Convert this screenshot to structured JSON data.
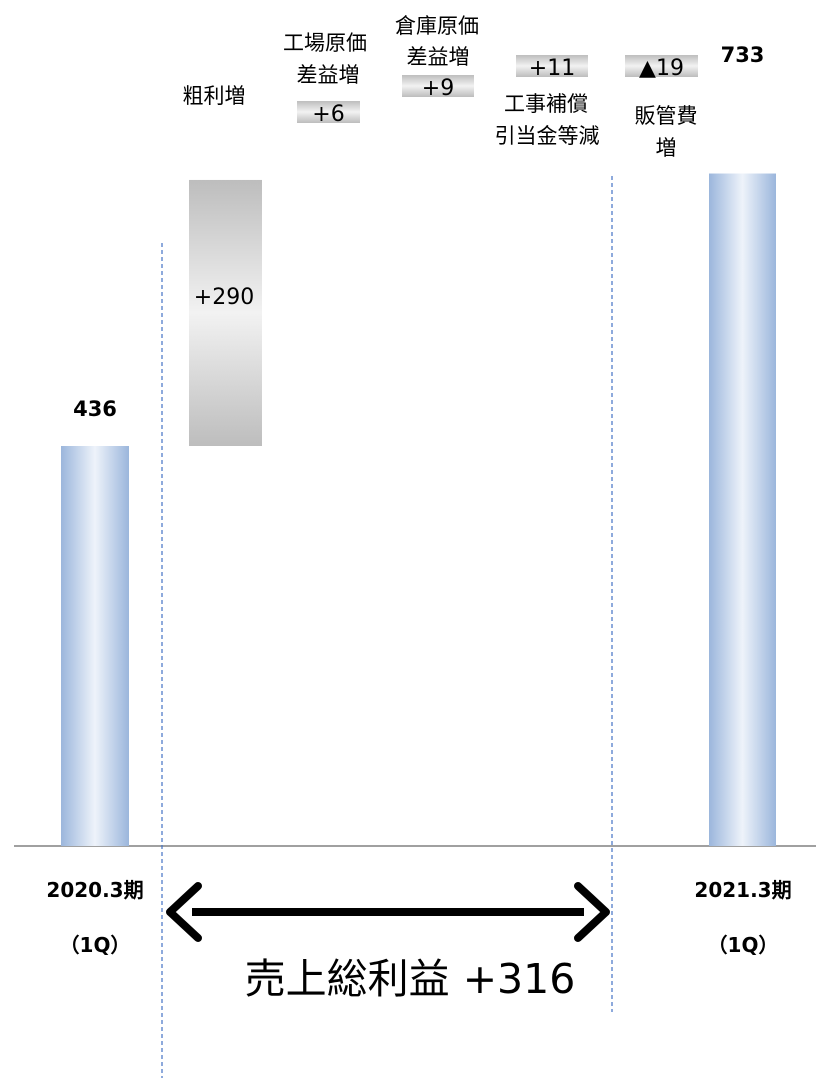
{
  "chart_data": {
    "type": "bar",
    "subtype": "waterfall",
    "start": {
      "label_lines": [
        "2020.3期",
        "（1Q）"
      ],
      "value": 436
    },
    "end": {
      "label_lines": [
        "2021.3期",
        "（1Q）"
      ],
      "value": 733
    },
    "steps": [
      {
        "label_lines": [
          "粗利増"
        ],
        "value": 290,
        "display": "+290"
      },
      {
        "label_lines": [
          "工場原価",
          "差益増"
        ],
        "value": 6,
        "display": "+6"
      },
      {
        "label_lines": [
          "倉庫原価",
          "差益増"
        ],
        "value": 9,
        "display": "+9"
      },
      {
        "label_lines": [
          "工事補償",
          "引当金等減"
        ],
        "value": 11,
        "display": "+11"
      },
      {
        "label_lines": [
          "販管費",
          "増"
        ],
        "value": -19,
        "display": "▲19"
      }
    ],
    "total_annotation": "売上総利益 +316",
    "colors": {
      "total_bar": "#9bb6dc",
      "total_bar_highlight": "#eef3fa",
      "step_bar": "#bdbdbd",
      "step_bar_highlight": "#f2f2f2",
      "divider": "#4472c4",
      "arrow": "#000000",
      "baseline": "#808080"
    },
    "grid": false
  }
}
